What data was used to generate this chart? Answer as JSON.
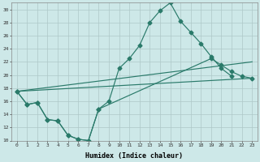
{
  "xlabel": "Humidex (Indice chaleur)",
  "background_color": "#cde8e8",
  "line_color": "#2a7a6a",
  "grid_color": "#b8d8d8",
  "xlim": [
    -0.5,
    23.5
  ],
  "ylim": [
    10,
    31
  ],
  "yticks": [
    10,
    12,
    14,
    16,
    18,
    20,
    22,
    24,
    26,
    28,
    30
  ],
  "xticks": [
    0,
    1,
    2,
    3,
    4,
    5,
    6,
    7,
    8,
    9,
    10,
    11,
    12,
    13,
    14,
    15,
    16,
    17,
    18,
    19,
    20,
    21,
    22,
    23
  ],
  "line1_x": [
    0,
    1,
    2,
    3,
    4,
    5,
    6,
    7,
    8,
    9,
    10,
    11,
    12,
    13,
    14,
    15,
    16,
    17,
    18,
    19,
    20,
    21
  ],
  "line1_y": [
    17.5,
    15.5,
    15.8,
    13.2,
    13.0,
    10.8,
    10.2,
    10.0,
    14.8,
    16.0,
    21.0,
    22.5,
    24.5,
    28.0,
    29.8,
    31.0,
    28.2,
    26.5,
    24.8,
    22.8,
    21.0,
    19.8
  ],
  "line2_x": [
    0,
    1,
    2,
    3,
    4,
    5,
    6,
    7,
    8,
    19,
    20,
    21,
    22,
    23
  ],
  "line2_y": [
    17.5,
    15.5,
    15.8,
    13.2,
    13.0,
    10.8,
    10.2,
    10.0,
    14.8,
    22.5,
    21.5,
    20.5,
    19.8,
    19.5
  ],
  "line3_x": [
    0,
    23
  ],
  "line3_y": [
    17.5,
    19.5
  ],
  "line4_x": [
    0,
    23
  ],
  "line4_y": [
    17.5,
    22.0
  ],
  "line5_x": [
    0,
    23
  ],
  "line5_y": [
    17.5,
    19.5
  ]
}
